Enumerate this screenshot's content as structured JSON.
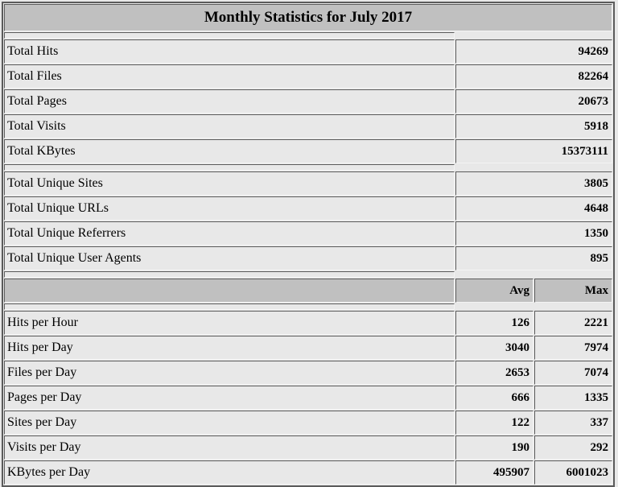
{
  "colors": {
    "page_bg": "#E8E8E8",
    "title_bg": "#C0C0C0",
    "header_bg": "#C0C0C0",
    "row_bg": "#E8E8E8",
    "border_dark": "#5B5B5B",
    "border_light": "#F4F4F4"
  },
  "chart_data": {
    "type": "table",
    "title": "Monthly Statistics for July 2017",
    "columns": [
      "Avg",
      "Max"
    ],
    "totals": [
      {
        "label": "Total Hits",
        "value": 94269
      },
      {
        "label": "Total Files",
        "value": 82264
      },
      {
        "label": "Total Pages",
        "value": 20673
      },
      {
        "label": "Total Visits",
        "value": 5918
      },
      {
        "label": "Total KBytes",
        "value": 15373111
      }
    ],
    "uniques": [
      {
        "label": "Total Unique Sites",
        "value": 3805
      },
      {
        "label": "Total Unique URLs",
        "value": 4648
      },
      {
        "label": "Total Unique Referrers",
        "value": 1350
      },
      {
        "label": "Total Unique User Agents",
        "value": 895
      }
    ],
    "per_period": [
      {
        "label": "Hits per Hour",
        "avg": 126,
        "max": 2221
      },
      {
        "label": "Hits per Day",
        "avg": 3040,
        "max": 7974
      },
      {
        "label": "Files per Day",
        "avg": 2653,
        "max": 7074
      },
      {
        "label": "Pages per Day",
        "avg": 666,
        "max": 1335
      },
      {
        "label": "Sites per Day",
        "avg": 122,
        "max": 337
      },
      {
        "label": "Visits per Day",
        "avg": 190,
        "max": 292
      },
      {
        "label": "KBytes per Day",
        "avg": 495907,
        "max": 6001023
      }
    ]
  }
}
